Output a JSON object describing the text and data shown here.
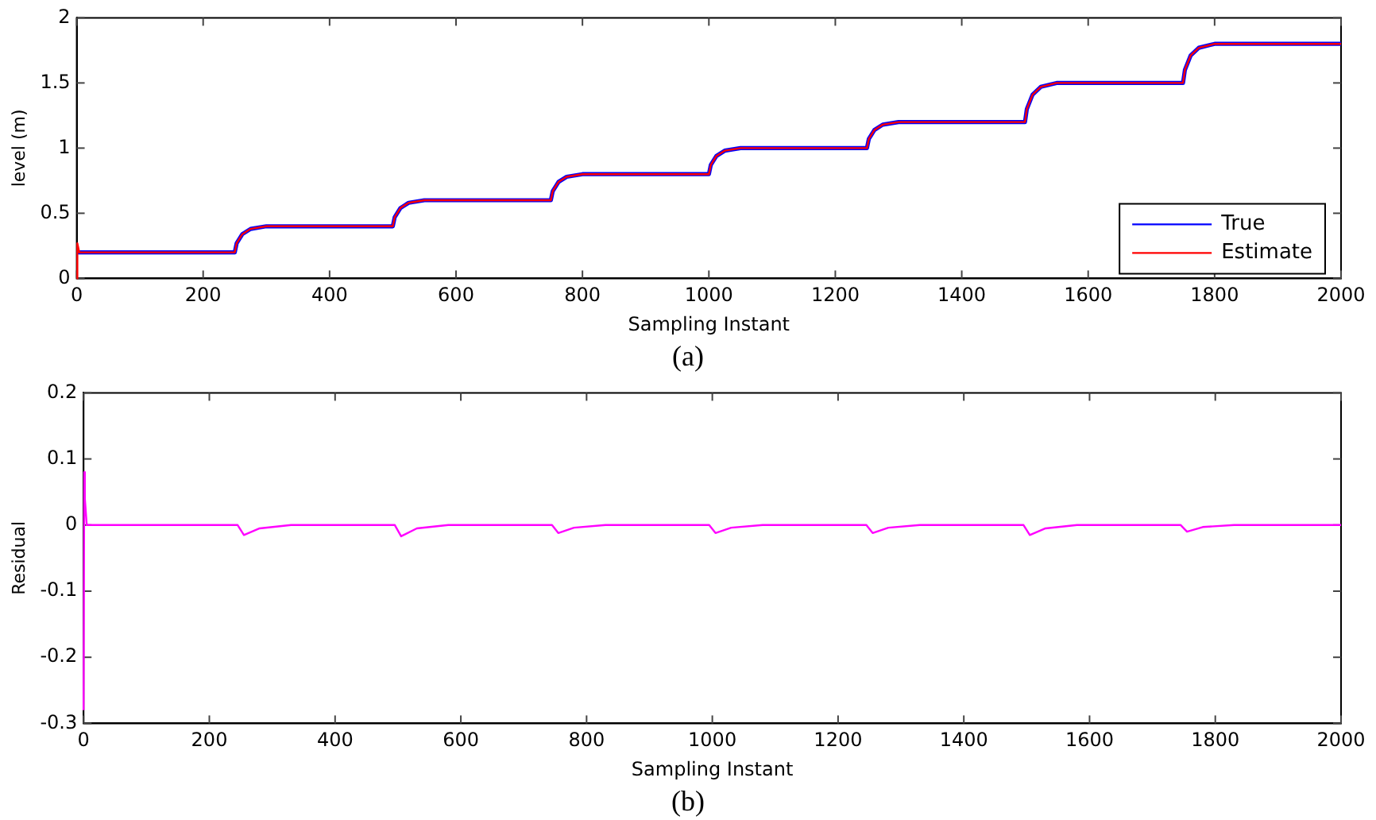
{
  "chart_data": [
    {
      "type": "line",
      "xlabel": "Sampling Instant",
      "ylabel": "level (m)",
      "xlim": [
        0,
        2000
      ],
      "xticks": [
        0,
        200,
        400,
        600,
        800,
        1000,
        1200,
        1400,
        1600,
        1800,
        2000
      ],
      "ylim": [
        0,
        2
      ],
      "yticks": [
        0,
        0.5,
        1,
        1.5,
        2
      ],
      "grid": false,
      "legend": "bottom right",
      "marker": "none",
      "line_style": "solid",
      "annotations": [
        "(a)"
      ],
      "series": [
        {
          "name": "True",
          "color": "#0000ff",
          "x": [
            0,
            250,
            253,
            262,
            275,
            300,
            500,
            503,
            512,
            525,
            550,
            750,
            753,
            762,
            775,
            800,
            1000,
            1003,
            1012,
            1025,
            1050,
            1250,
            1253,
            1262,
            1275,
            1300,
            1500,
            1503,
            1512,
            1525,
            1550,
            1750,
            1753,
            1762,
            1775,
            1800,
            2000
          ],
          "values": [
            0.2,
            0.2,
            0.27,
            0.34,
            0.38,
            0.4,
            0.4,
            0.47,
            0.54,
            0.58,
            0.6,
            0.6,
            0.67,
            0.74,
            0.78,
            0.8,
            0.8,
            0.87,
            0.94,
            0.98,
            1.0,
            1.0,
            1.07,
            1.14,
            1.18,
            1.2,
            1.2,
            1.3,
            1.41,
            1.47,
            1.5,
            1.5,
            1.6,
            1.71,
            1.77,
            1.8,
            1.8
          ]
        },
        {
          "name": "Estimate",
          "color": "#ff0000",
          "x": [
            0,
            1,
            4,
            250,
            253,
            262,
            275,
            300,
            500,
            503,
            512,
            525,
            550,
            750,
            753,
            762,
            775,
            800,
            1000,
            1003,
            1012,
            1025,
            1050,
            1250,
            1253,
            1262,
            1275,
            1300,
            1500,
            1503,
            1512,
            1525,
            1550,
            1750,
            1753,
            1762,
            1775,
            1800,
            2000
          ],
          "values": [
            0,
            0.27,
            0.2,
            0.2,
            0.27,
            0.34,
            0.38,
            0.4,
            0.4,
            0.47,
            0.54,
            0.58,
            0.6,
            0.6,
            0.67,
            0.74,
            0.78,
            0.8,
            0.8,
            0.87,
            0.94,
            0.98,
            1.0,
            1.0,
            1.07,
            1.14,
            1.18,
            1.2,
            1.2,
            1.3,
            1.41,
            1.47,
            1.5,
            1.5,
            1.6,
            1.71,
            1.77,
            1.8,
            1.8
          ]
        }
      ]
    },
    {
      "type": "line",
      "xlabel": "Sampling Instant",
      "ylabel": "Residual",
      "xlim": [
        0,
        2000
      ],
      "xticks": [
        0,
        200,
        400,
        600,
        800,
        1000,
        1200,
        1400,
        1600,
        1800,
        2000
      ],
      "ylim": [
        -0.3,
        0.2
      ],
      "yticks": [
        -0.3,
        -0.2,
        -0.1,
        0,
        0.1,
        0.2
      ],
      "grid": false,
      "marker": "none",
      "line_style": "solid",
      "annotations": [
        "(b)"
      ],
      "series": [
        {
          "color": "#ff00ff",
          "x": [
            0,
            1,
            2,
            5,
            245,
            255,
            280,
            330,
            495,
            505,
            530,
            580,
            745,
            755,
            780,
            830,
            995,
            1005,
            1030,
            1080,
            1245,
            1255,
            1280,
            1330,
            1495,
            1505,
            1530,
            1580,
            1745,
            1755,
            1780,
            1830,
            2000
          ],
          "values": [
            -0.28,
            0.08,
            0.04,
            0,
            0,
            -0.015,
            -0.005,
            0,
            0,
            -0.017,
            -0.005,
            0,
            0,
            -0.012,
            -0.004,
            0,
            0,
            -0.012,
            -0.004,
            0,
            0,
            -0.012,
            -0.004,
            0,
            0,
            -0.015,
            -0.005,
            0,
            0,
            -0.01,
            -0.003,
            0,
            0
          ]
        }
      ]
    }
  ]
}
